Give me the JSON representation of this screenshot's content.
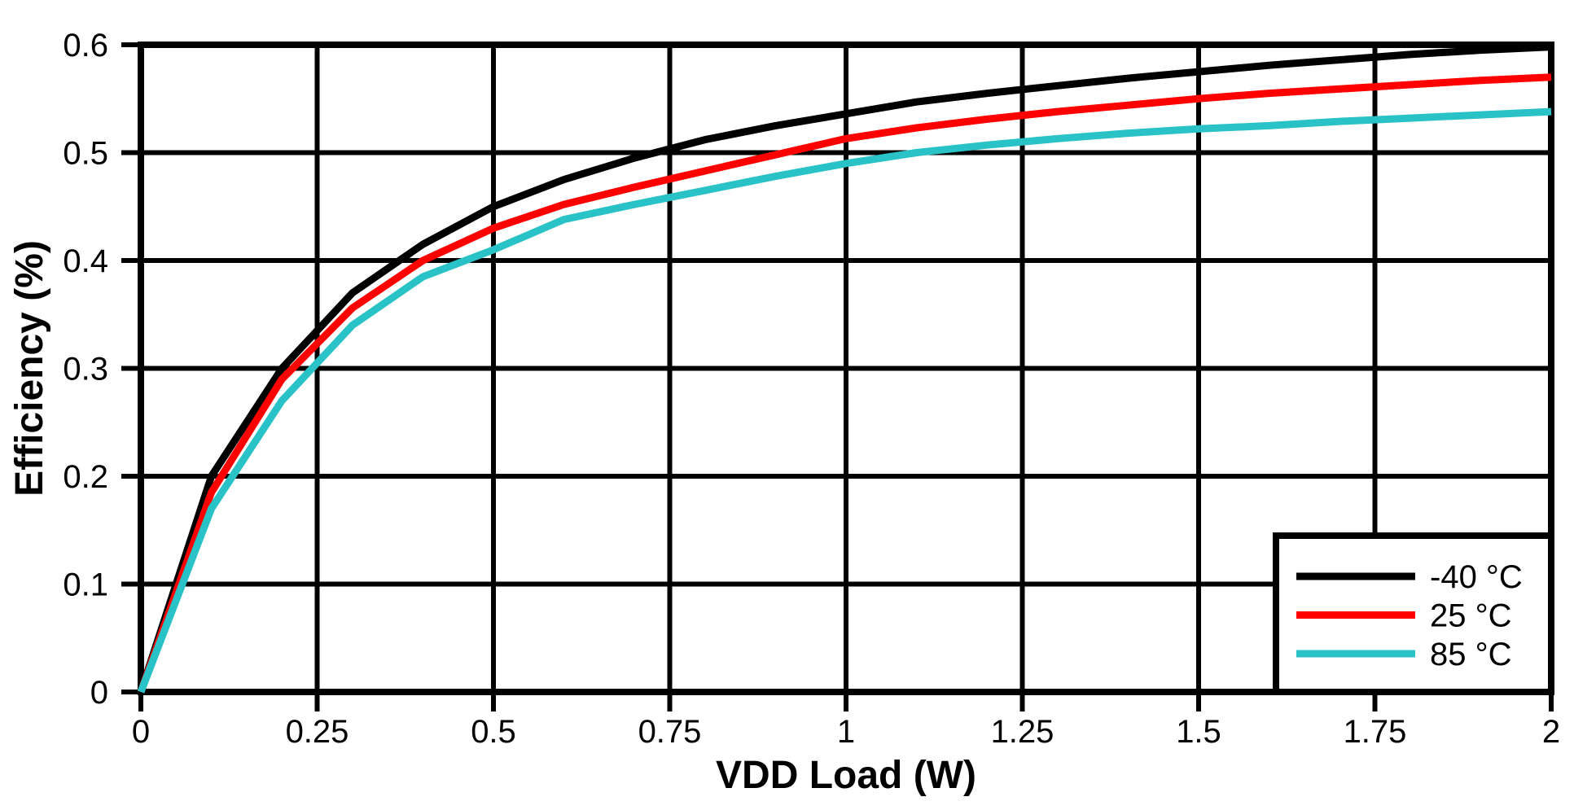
{
  "chart_data": {
    "type": "line",
    "title": "",
    "xlabel": "VDD Load (W)",
    "ylabel": "Efficiency (%)",
    "xlim": [
      0,
      2
    ],
    "ylim": [
      0,
      0.6
    ],
    "grid": true,
    "grid_color": "#000000",
    "background": "#ffffff",
    "legend_position": "lower right",
    "x_ticks": [
      0,
      0.25,
      0.5,
      0.75,
      1,
      1.25,
      1.5,
      1.75,
      2
    ],
    "x_tick_labels": [
      "0",
      "0.25",
      "0.5",
      "0.75",
      "1",
      "1.25",
      "1.5",
      "1.75",
      "2"
    ],
    "y_ticks": [
      0,
      0.1,
      0.2,
      0.3,
      0.4,
      0.5,
      0.6
    ],
    "y_tick_labels": [
      "0",
      "0.1",
      "0.2",
      "0.3",
      "0.4",
      "0.5",
      "0.6"
    ],
    "x": [
      0,
      0.1,
      0.2,
      0.3,
      0.4,
      0.5,
      0.6,
      0.7,
      0.8,
      0.9,
      1.0,
      1.1,
      1.2,
      1.3,
      1.4,
      1.5,
      1.6,
      1.7,
      1.8,
      1.9,
      2.0
    ],
    "series": [
      {
        "name": "-40 °C",
        "color": "#000000",
        "values": [
          0,
          0.2,
          0.3,
          0.37,
          0.415,
          0.45,
          0.475,
          0.495,
          0.512,
          0.525,
          0.536,
          0.547,
          0.555,
          0.562,
          0.569,
          0.575,
          0.581,
          0.586,
          0.591,
          0.595,
          0.598
        ]
      },
      {
        "name": "25 °C",
        "color": "#ff0000",
        "values": [
          0,
          0.185,
          0.29,
          0.356,
          0.4,
          0.43,
          0.452,
          0.468,
          0.483,
          0.498,
          0.513,
          0.523,
          0.531,
          0.538,
          0.544,
          0.55,
          0.555,
          0.559,
          0.563,
          0.567,
          0.57
        ]
      },
      {
        "name": "85 °C",
        "color": "#29c2c6",
        "values": [
          0,
          0.17,
          0.27,
          0.34,
          0.385,
          0.41,
          0.438,
          0.452,
          0.465,
          0.478,
          0.49,
          0.5,
          0.507,
          0.513,
          0.518,
          0.522,
          0.525,
          0.529,
          0.532,
          0.535,
          0.538
        ]
      }
    ]
  }
}
